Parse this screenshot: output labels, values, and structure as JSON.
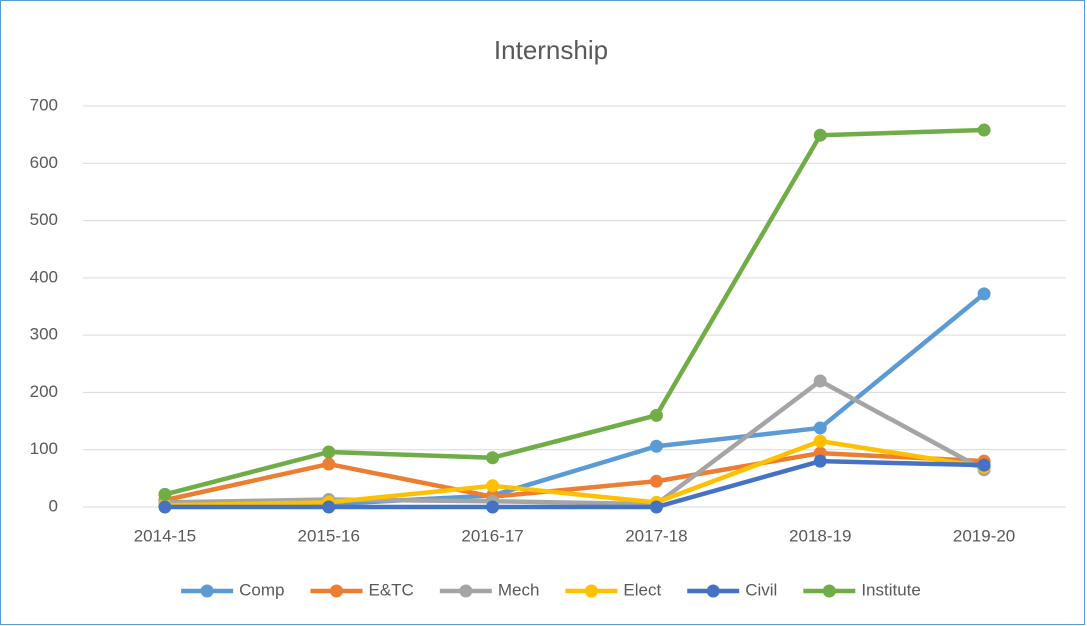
{
  "chart_data": {
    "type": "line",
    "title": "Internship",
    "categories": [
      "2014-15",
      "2015-16",
      "2016-17",
      "2017-18",
      "2018-19",
      "2019-20"
    ],
    "series": [
      {
        "name": "Comp",
        "color": "#5b9bd5",
        "values": [
          3,
          5,
          20,
          106,
          138,
          372
        ]
      },
      {
        "name": "E&TC",
        "color": "#ed7d31",
        "values": [
          12,
          75,
          18,
          45,
          94,
          80
        ]
      },
      {
        "name": "Mech",
        "color": "#a5a5a5",
        "values": [
          8,
          13,
          10,
          5,
          220,
          65
        ]
      },
      {
        "name": "Elect",
        "color": "#ffc000",
        "values": [
          3,
          8,
          37,
          8,
          115,
          70
        ]
      },
      {
        "name": "Civil",
        "color": "#4472c4",
        "values": [
          0,
          0,
          0,
          0,
          80,
          73
        ]
      },
      {
        "name": "Institute",
        "color": "#70ad47",
        "values": [
          22,
          96,
          86,
          160,
          649,
          658
        ]
      }
    ],
    "ylim": [
      0,
      700
    ],
    "yticks": [
      0,
      100,
      200,
      300,
      400,
      500,
      600,
      700
    ],
    "grid": true,
    "legend": "bottom"
  }
}
